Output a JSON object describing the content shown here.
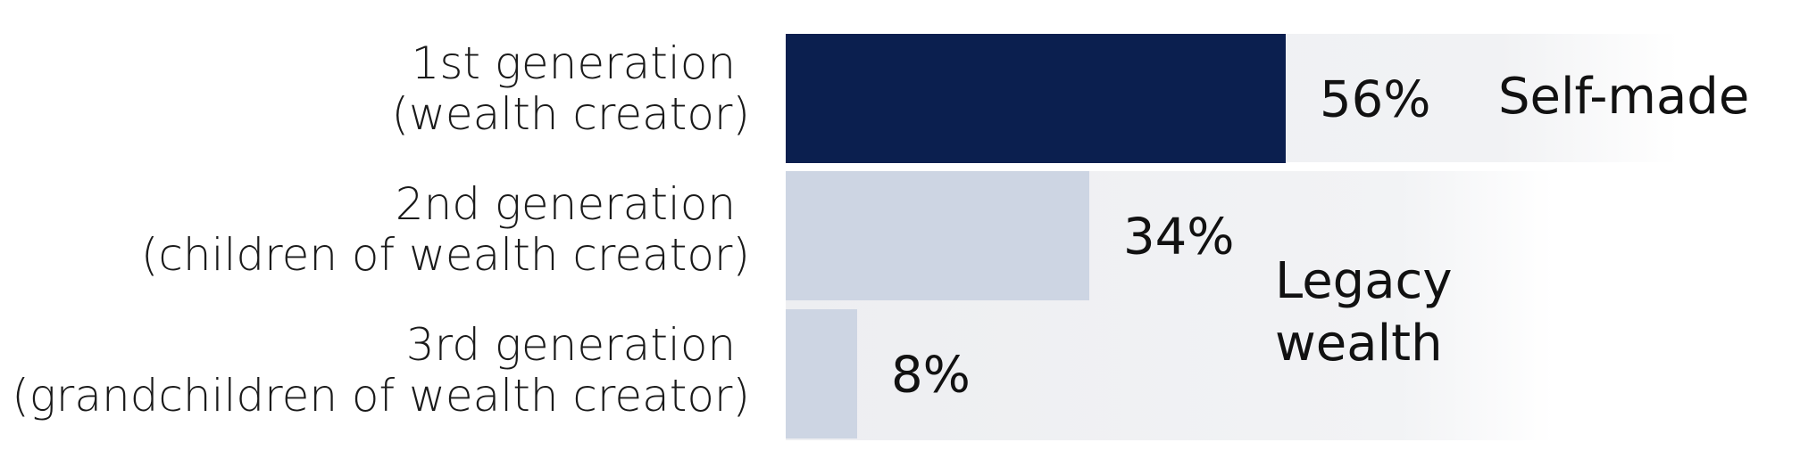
{
  "chart_data": {
    "type": "bar",
    "orientation": "horizontal",
    "unit": "%",
    "categories": [
      "1st generation\n(wealth creator)",
      "2nd generation\n(children of wealth creator)",
      "3rd generation\n(grandchildren of wealth creator)"
    ],
    "values": [
      56,
      34,
      8
    ],
    "value_labels": [
      "56%",
      "34%",
      "8%"
    ],
    "groups": [
      {
        "label": "Self-made",
        "categories": [
          0
        ]
      },
      {
        "label": "Legacy\nwealth",
        "categories": [
          1,
          2
        ]
      }
    ],
    "xlim": [
      0,
      100
    ],
    "grid": false,
    "legend": "none"
  },
  "colors": {
    "self_made_bar": "#0b1f4f",
    "legacy_bar": "#cdd5e3",
    "band": "#eeeff2"
  }
}
